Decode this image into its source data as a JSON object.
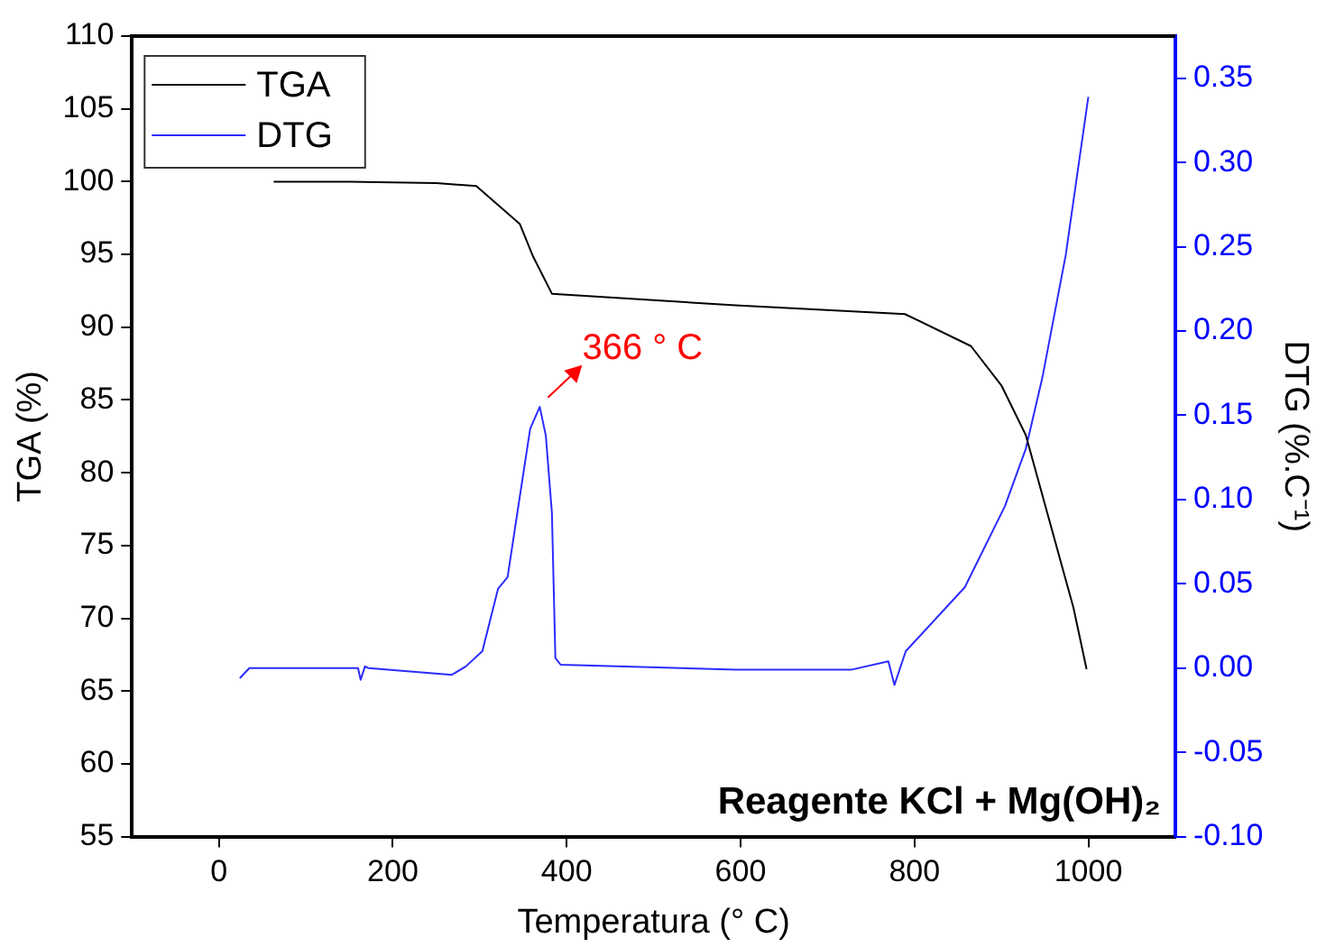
{
  "chart_data": {
    "type": "line",
    "xlabel": "Temperatura (° C)",
    "ylabel": "TGA (%)",
    "y2label": "DTG (%.C⁻¹)",
    "xlim": [
      -100,
      1100
    ],
    "xticks": [
      0,
      200,
      400,
      600,
      800,
      1000
    ],
    "ylim": [
      55,
      110
    ],
    "yticks": [
      55,
      60,
      65,
      70,
      75,
      80,
      85,
      90,
      95,
      100,
      105,
      110
    ],
    "y2lim": [
      -0.1,
      0.375
    ],
    "y2ticks": [
      {
        "value": -0.1,
        "label": "-0.10"
      },
      {
        "value": -0.05,
        "label": "-0.05"
      },
      {
        "value": 0,
        "label": "0.00"
      },
      {
        "value": 0.05,
        "label": "0.05"
      },
      {
        "value": 0.1,
        "label": "0.10"
      },
      {
        "value": 0.15,
        "label": "0.15"
      },
      {
        "value": 0.2,
        "label": "0.20"
      },
      {
        "value": 0.25,
        "label": "0.25"
      },
      {
        "value": 0.3,
        "label": "0.30"
      },
      {
        "value": 0.35,
        "label": "0.35"
      }
    ],
    "grid": false,
    "legend": "top left",
    "marker": "none",
    "line_style": "solid",
    "series": [
      {
        "name": "TGA",
        "color": "#000000",
        "x": [
          63,
          150,
          250,
          296,
          346,
          361,
          383,
          594,
          789,
          865,
          900,
          928,
          983,
          998
        ],
        "values": [
          100,
          100,
          99.9,
          99.7,
          97.1,
          94.9,
          92.3,
          91.5,
          90.9,
          88.7,
          86,
          82.6,
          70.7,
          66.5
        ]
      },
      {
        "name": "DTG",
        "color": "#2b2bff",
        "axis": "y2",
        "x": [
          24,
          35,
          160,
          163,
          168,
          172,
          268,
          284,
          303,
          321,
          332,
          342,
          358,
          369,
          376,
          383,
          387,
          393,
          594,
          727,
          770,
          777,
          790,
          858,
          904,
          928,
          947,
          974,
          990,
          1000
        ],
        "values": [
          -0.006,
          0,
          0,
          -0.007,
          0.001,
          0,
          -0.004,
          0.001,
          0.01,
          0.047,
          0.054,
          0.088,
          0.142,
          0.155,
          0.138,
          0.092,
          0.006,
          0.002,
          -0.001,
          -0.001,
          0.004,
          -0.01,
          0.01,
          0.048,
          0.096,
          0.13,
          0.172,
          0.245,
          0.303,
          0.339
        ]
      }
    ],
    "annotations": [
      "366 ° C",
      "Reagente KCl + Mg(OH)₂"
    ]
  }
}
